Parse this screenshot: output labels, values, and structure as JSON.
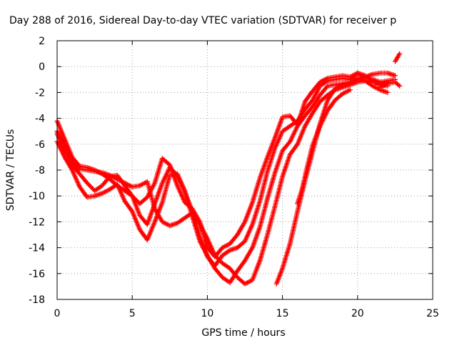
{
  "chart_data": {
    "type": "scatter",
    "title": "Day 288 of 2016, Sidereal Day-to-day VTEC variation (SDTVAR) for receiver p",
    "xlabel": "GPS time / hours",
    "ylabel": "SDTVAR / TECUs",
    "xlim": [
      0,
      25
    ],
    "ylim": [
      -18,
      2
    ],
    "xticks": [
      "0",
      "5",
      "10",
      "15",
      "20",
      "25"
    ],
    "yticks": [
      "2",
      "0",
      "-2",
      "-4",
      "-6",
      "-8",
      "-10",
      "-12",
      "-14",
      "-16",
      "-18"
    ],
    "grid": true,
    "marker": "plus",
    "series_color": "#ff0000",
    "series": [
      {
        "x": [
          0.0,
          0.5,
          1.0,
          1.5,
          2.0,
          2.5,
          3.0,
          3.5,
          4.0,
          4.5,
          5.0,
          5.5,
          6.0,
          6.5,
          7.0,
          7.5,
          8.0,
          8.5,
          9.0,
          9.5,
          10.0,
          10.5,
          11.0,
          11.5,
          12.0,
          12.5,
          13.0,
          13.5,
          14.0,
          14.5,
          15.0,
          15.5,
          16.0,
          16.5,
          17.0,
          17.5,
          18.0,
          18.5,
          19.0,
          19.5,
          20.0,
          20.5,
          21.0,
          21.5,
          22.0,
          22.5
        ],
        "y": [
          -4.2,
          -5.6,
          -7.0,
          -7.7,
          -7.8,
          -8.0,
          -8.3,
          -8.7,
          -9.2,
          -9.6,
          -10.0,
          -10.6,
          -10.1,
          -9.0,
          -7.1,
          -7.6,
          -9.2,
          -10.5,
          -11.0,
          -12.0,
          -14.0,
          -14.7,
          -14.0,
          -13.7,
          -13.0,
          -12.0,
          -10.5,
          -8.6,
          -7.0,
          -5.5,
          -3.9,
          -3.8,
          -4.5,
          -2.7,
          -1.9,
          -1.2,
          -0.9,
          -0.8,
          -0.7,
          -0.8,
          -0.5,
          -0.9,
          -1.0,
          -1.2,
          -1.1,
          -1.0
        ]
      },
      {
        "x": [
          0.0,
          0.5,
          1.0,
          1.5,
          2.0,
          2.5,
          3.0,
          3.5,
          4.0,
          4.5,
          5.0,
          5.5,
          6.0,
          6.5,
          7.0,
          7.5,
          8.0,
          8.5,
          9.0,
          9.5,
          10.0,
          10.5,
          11.0,
          11.5,
          12.0,
          12.5,
          13.0,
          13.5,
          14.0,
          14.5,
          15.0,
          15.5,
          16.0,
          16.5,
          17.0,
          17.5,
          18.0,
          18.5,
          19.0,
          19.5,
          20.0,
          20.5,
          21.0,
          21.5,
          22.0
        ],
        "y": [
          -5.2,
          -6.5,
          -7.6,
          -8.3,
          -9.0,
          -9.6,
          -9.2,
          -8.5,
          -8.4,
          -9.2,
          -10.0,
          -11.5,
          -12.2,
          -10.6,
          -9.0,
          -7.8,
          -8.4,
          -9.7,
          -11.2,
          -13.2,
          -14.7,
          -15.4,
          -14.6,
          -14.2,
          -14.0,
          -13.5,
          -12.2,
          -10.4,
          -8.1,
          -6.3,
          -5.0,
          -4.6,
          -4.2,
          -3.3,
          -2.6,
          -1.5,
          -1.1,
          -1.0,
          -0.9,
          -1.0,
          -0.5,
          -0.7,
          -1.1,
          -1.4,
          -1.5
        ]
      },
      {
        "x": [
          0.0,
          0.5,
          1.0,
          1.5,
          2.0,
          2.5,
          3.0,
          3.5,
          4.0,
          4.5,
          5.0,
          5.5,
          6.0,
          6.5,
          7.0,
          7.5,
          8.0,
          8.5,
          9.0,
          9.5,
          10.0,
          10.5,
          11.0,
          11.5,
          12.0,
          12.5,
          13.0,
          13.5,
          14.0,
          14.5,
          15.0,
          15.5,
          16.0,
          16.5,
          17.0,
          17.5,
          18.0,
          18.5,
          19.0,
          19.5,
          20.0,
          20.5,
          21.0,
          21.5,
          22.0
        ],
        "y": [
          -5.8,
          -7.0,
          -8.0,
          -9.3,
          -10.1,
          -10.0,
          -9.8,
          -9.5,
          -9.1,
          -10.4,
          -11.2,
          -12.6,
          -13.4,
          -12.0,
          -10.5,
          -8.4,
          -8.3,
          -9.6,
          -11.6,
          -13.5,
          -14.6,
          -15.6,
          -16.3,
          -16.7,
          -15.8,
          -15.0,
          -14.0,
          -12.4,
          -10.2,
          -8.2,
          -6.5,
          -5.8,
          -4.6,
          -3.8,
          -3.1,
          -2.2,
          -1.5,
          -1.4,
          -1.3,
          -1.2,
          -0.9,
          -1.1,
          -1.5,
          -1.8,
          -2.0
        ]
      },
      {
        "x": [
          0.0,
          0.5,
          1.0,
          1.5,
          2.0,
          2.5,
          3.0,
          3.5,
          4.0,
          4.5,
          5.0,
          5.5,
          6.0,
          6.5,
          7.0,
          7.5,
          8.0,
          8.5,
          9.0,
          9.5,
          10.0,
          10.5,
          11.0,
          11.5,
          12.0,
          12.5,
          13.0,
          13.5,
          14.0,
          14.5,
          15.0,
          15.5,
          16.0,
          16.5,
          17.0,
          17.5,
          18.0,
          18.5,
          19.0,
          19.5,
          20.0,
          20.5,
          21.0,
          21.5,
          22.0
        ],
        "y": [
          -5.0,
          -6.0,
          -7.2,
          -7.9,
          -8.0,
          -8.1,
          -8.2,
          -8.4,
          -8.7,
          -9.0,
          -9.3,
          -9.2,
          -8.9,
          -11.0,
          -12.0,
          -12.3,
          -12.1,
          -11.7,
          -11.3,
          -12.2,
          -13.3,
          -14.6,
          -15.2,
          -15.6,
          -16.3,
          -16.8,
          -16.5,
          -15.0,
          -13.0,
          -10.8,
          -8.5,
          -6.8,
          -6.0,
          -4.6,
          -3.6,
          -2.7,
          -2.2,
          -1.8,
          -1.6,
          -1.4,
          -1.2,
          -1.1,
          -1.2,
          -1.3,
          -1.2
        ]
      },
      {
        "x": [
          14.6,
          15.0,
          15.5,
          16.0,
          16.5,
          17.0,
          17.5,
          18.0,
          18.5,
          19.0,
          19.5,
          20.0,
          20.5,
          21.0,
          21.5,
          22.0,
          22.5
        ],
        "y": [
          -16.8,
          -15.6,
          -13.7,
          -11.2,
          -8.8,
          -6.6,
          -4.4,
          -2.6,
          -1.7,
          -1.4,
          -1.3,
          -1.0,
          -0.8,
          -0.6,
          -0.5,
          -0.5,
          -0.7
        ]
      },
      {
        "x": [
          16.0,
          16.3,
          16.6,
          17.0,
          17.5,
          18.0,
          18.5,
          19.0,
          19.5
        ],
        "y": [
          -10.6,
          -9.5,
          -8.0,
          -6.1,
          -4.6,
          -3.4,
          -2.6,
          -2.1,
          -1.8
        ]
      },
      {
        "x": [
          22.5,
          22.7,
          22.8
        ],
        "y": [
          0.4,
          0.8,
          1.0
        ]
      },
      {
        "x": [
          21.5,
          22.0,
          22.5,
          22.8
        ],
        "y": [
          -1.6,
          -1.3,
          -1.2,
          -1.5
        ]
      }
    ]
  }
}
